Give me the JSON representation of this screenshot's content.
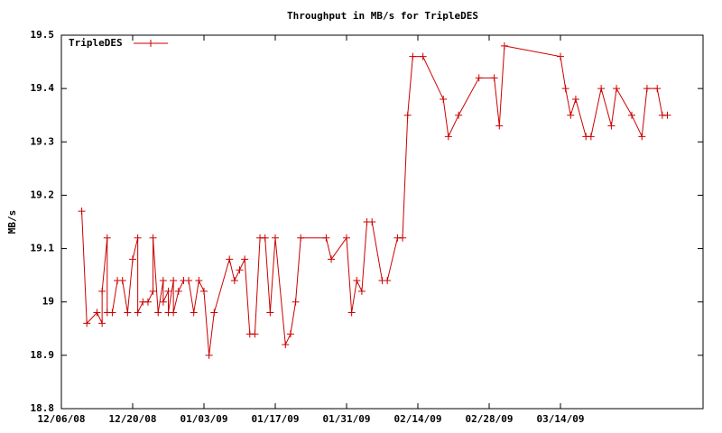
{
  "chart_data": {
    "type": "line",
    "title": "Throughput in MB/s for TripleDES",
    "ylabel": "MB/s",
    "x": [
      "2008-12-10",
      "2008-12-11",
      "2008-12-13",
      "2008-12-14",
      "2008-12-14",
      "2008-12-15",
      "2008-12-15",
      "2008-12-16",
      "2008-12-17",
      "2008-12-18",
      "2008-12-19",
      "2008-12-20",
      "2008-12-21",
      "2008-12-21",
      "2008-12-22",
      "2008-12-23",
      "2008-12-24",
      "2008-12-24",
      "2008-12-25",
      "2008-12-26",
      "2008-12-26",
      "2008-12-27",
      "2008-12-27",
      "2008-12-28",
      "2008-12-28",
      "2008-12-29",
      "2008-12-30",
      "2008-12-31",
      "2009-01-01",
      "2009-01-02",
      "2009-01-03",
      "2009-01-04",
      "2009-01-05",
      "2009-01-08",
      "2009-01-09",
      "2009-01-10",
      "2009-01-11",
      "2009-01-12",
      "2009-01-13",
      "2009-01-14",
      "2009-01-15",
      "2009-01-16",
      "2009-01-17",
      "2009-01-19",
      "2009-01-20",
      "2009-01-21",
      "2009-01-22",
      "2009-01-27",
      "2009-01-28",
      "2009-01-31",
      "2009-02-01",
      "2009-02-02",
      "2009-02-03",
      "2009-02-04",
      "2009-02-05",
      "2009-02-07",
      "2009-02-08",
      "2009-02-10",
      "2009-02-11",
      "2009-02-12",
      "2009-02-13",
      "2009-02-15",
      "2009-02-19",
      "2009-02-20",
      "2009-02-22",
      "2009-02-26",
      "2009-03-01",
      "2009-03-02",
      "2009-03-03",
      "2009-03-14",
      "2009-03-15",
      "2009-03-16",
      "2009-03-17",
      "2009-03-19",
      "2009-03-20",
      "2009-03-22",
      "2009-03-24",
      "2009-03-25",
      "2009-03-28",
      "2009-03-30",
      "2009-03-31",
      "2009-04-02",
      "2009-04-03",
      "2009-04-04"
    ],
    "series": [
      {
        "name": "TripleDES",
        "color": "#cc0000",
        "values": [
          19.17,
          18.96,
          18.98,
          18.96,
          19.02,
          19.12,
          18.98,
          18.98,
          19.04,
          19.04,
          18.98,
          19.08,
          19.12,
          18.98,
          19.0,
          19.0,
          19.02,
          19.12,
          18.98,
          19.04,
          19.0,
          19.02,
          18.98,
          19.04,
          18.98,
          19.02,
          19.04,
          19.04,
          18.98,
          19.04,
          19.02,
          18.9,
          18.98,
          19.08,
          19.04,
          19.06,
          19.08,
          18.94,
          18.94,
          19.12,
          19.12,
          18.98,
          19.12,
          18.92,
          18.94,
          19.0,
          19.12,
          19.12,
          19.08,
          19.12,
          18.98,
          19.04,
          19.02,
          19.15,
          19.15,
          19.04,
          19.04,
          19.12,
          19.12,
          19.35,
          19.46,
          19.46,
          19.38,
          19.31,
          19.35,
          19.42,
          19.42,
          19.33,
          19.48,
          19.46,
          19.4,
          19.35,
          19.38,
          19.31,
          19.31,
          19.4,
          19.33,
          19.4,
          19.35,
          19.31,
          19.4,
          19.4,
          19.35,
          19.35
        ]
      }
    ],
    "xlim": [
      "2008-12-06",
      "2009-04-11"
    ],
    "xticks": [
      {
        "value": "2008-12-06",
        "label": "12/06/08"
      },
      {
        "value": "2008-12-20",
        "label": "12/20/08"
      },
      {
        "value": "2009-01-03",
        "label": "01/03/09"
      },
      {
        "value": "2009-01-17",
        "label": "01/17/09"
      },
      {
        "value": "2009-01-31",
        "label": "01/31/09"
      },
      {
        "value": "2009-02-14",
        "label": "02/14/09"
      },
      {
        "value": "2009-02-28",
        "label": "02/28/09"
      },
      {
        "value": "2009-03-14",
        "label": "03/14/09"
      }
    ],
    "ylim": [
      18.8,
      19.5
    ],
    "yticks": [
      18.8,
      18.9,
      19,
      19.1,
      19.2,
      19.3,
      19.4,
      19.5
    ],
    "grid": false,
    "legend": "top-left"
  }
}
